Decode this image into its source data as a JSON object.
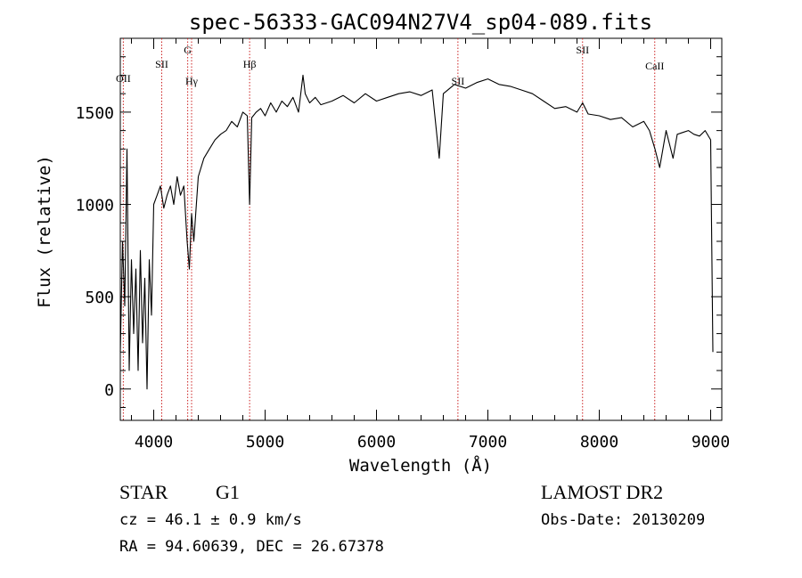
{
  "chart_data": {
    "type": "line",
    "title": "spec-56333-GAC094N27V4_sp04-089.fits",
    "xlabel": "Wavelength (Å)",
    "ylabel": "Flux (relative)",
    "xlim": [
      3700,
      9100
    ],
    "ylim": [
      -170,
      1900
    ],
    "x_ticks": [
      4000,
      5000,
      6000,
      7000,
      8000,
      9000
    ],
    "x_tick_labels": [
      "4000",
      "5000",
      "6000",
      "7000",
      "8000",
      "9000"
    ],
    "y_ticks": [
      0,
      500,
      1000,
      1500
    ],
    "y_tick_labels": [
      "0",
      "500",
      "1000",
      "1500"
    ],
    "grid": false,
    "series": [
      {
        "color": "#000000",
        "x": [
          3700,
          3720,
          3740,
          3760,
          3780,
          3800,
          3820,
          3840,
          3860,
          3880,
          3900,
          3920,
          3940,
          3960,
          3980,
          4000,
          4030,
          4060,
          4090,
          4120,
          4150,
          4180,
          4210,
          4240,
          4270,
          4300,
          4320,
          4340,
          4360,
          4400,
          4450,
          4500,
          4550,
          4600,
          4650,
          4700,
          4750,
          4800,
          4840,
          4861,
          4880,
          4920,
          4960,
          5000,
          5050,
          5100,
          5150,
          5200,
          5250,
          5300,
          5340,
          5360,
          5400,
          5450,
          5500,
          5600,
          5700,
          5800,
          5900,
          6000,
          6100,
          6200,
          6300,
          6400,
          6500,
          6563,
          6600,
          6700,
          6800,
          6900,
          7000,
          7100,
          7200,
          7300,
          7400,
          7500,
          7600,
          7700,
          7800,
          7850,
          7900,
          8000,
          8100,
          8200,
          8300,
          8400,
          8450,
          8500,
          8542,
          8600,
          8662,
          8700,
          8750,
          8800,
          8850,
          8900,
          8950,
          9000,
          9020
        ],
        "y": [
          200,
          800,
          450,
          1300,
          100,
          700,
          300,
          650,
          100,
          750,
          250,
          600,
          0,
          700,
          400,
          1000,
          1050,
          1100,
          980,
          1050,
          1100,
          1000,
          1150,
          1050,
          1100,
          800,
          650,
          950,
          800,
          1150,
          1250,
          1300,
          1350,
          1380,
          1400,
          1450,
          1420,
          1500,
          1480,
          1000,
          1470,
          1500,
          1520,
          1480,
          1550,
          1500,
          1560,
          1530,
          1580,
          1500,
          1700,
          1600,
          1550,
          1580,
          1540,
          1560,
          1590,
          1550,
          1600,
          1560,
          1580,
          1600,
          1610,
          1590,
          1620,
          1250,
          1600,
          1650,
          1630,
          1660,
          1680,
          1650,
          1640,
          1620,
          1600,
          1560,
          1520,
          1530,
          1500,
          1550,
          1490,
          1480,
          1460,
          1470,
          1420,
          1450,
          1400,
          1300,
          1200,
          1400,
          1250,
          1380,
          1390,
          1400,
          1380,
          1370,
          1400,
          1350,
          200
        ]
      }
    ],
    "line_marks": [
      {
        "label": "OII",
        "x": 3727
      },
      {
        "label": "SII",
        "x": 4072
      },
      {
        "label": "G",
        "x": 4305
      },
      {
        "label": "Hγ",
        "x": 4340
      },
      {
        "label": "Hβ",
        "x": 4861
      },
      {
        "label": "SII",
        "x": 6731
      },
      {
        "label": "SII",
        "x": 7850
      },
      {
        "label": "CaII",
        "x": 8498
      }
    ]
  },
  "info": {
    "class_label": "STAR",
    "subclass_label": "G1",
    "cz_text": "cz = 46.1 ± 0.9 km/s",
    "coords_text": "RA =  94.60639, DEC =  26.67378",
    "survey_label": "LAMOST DR2",
    "obs_date_text": "Obs-Date: 20130209"
  }
}
